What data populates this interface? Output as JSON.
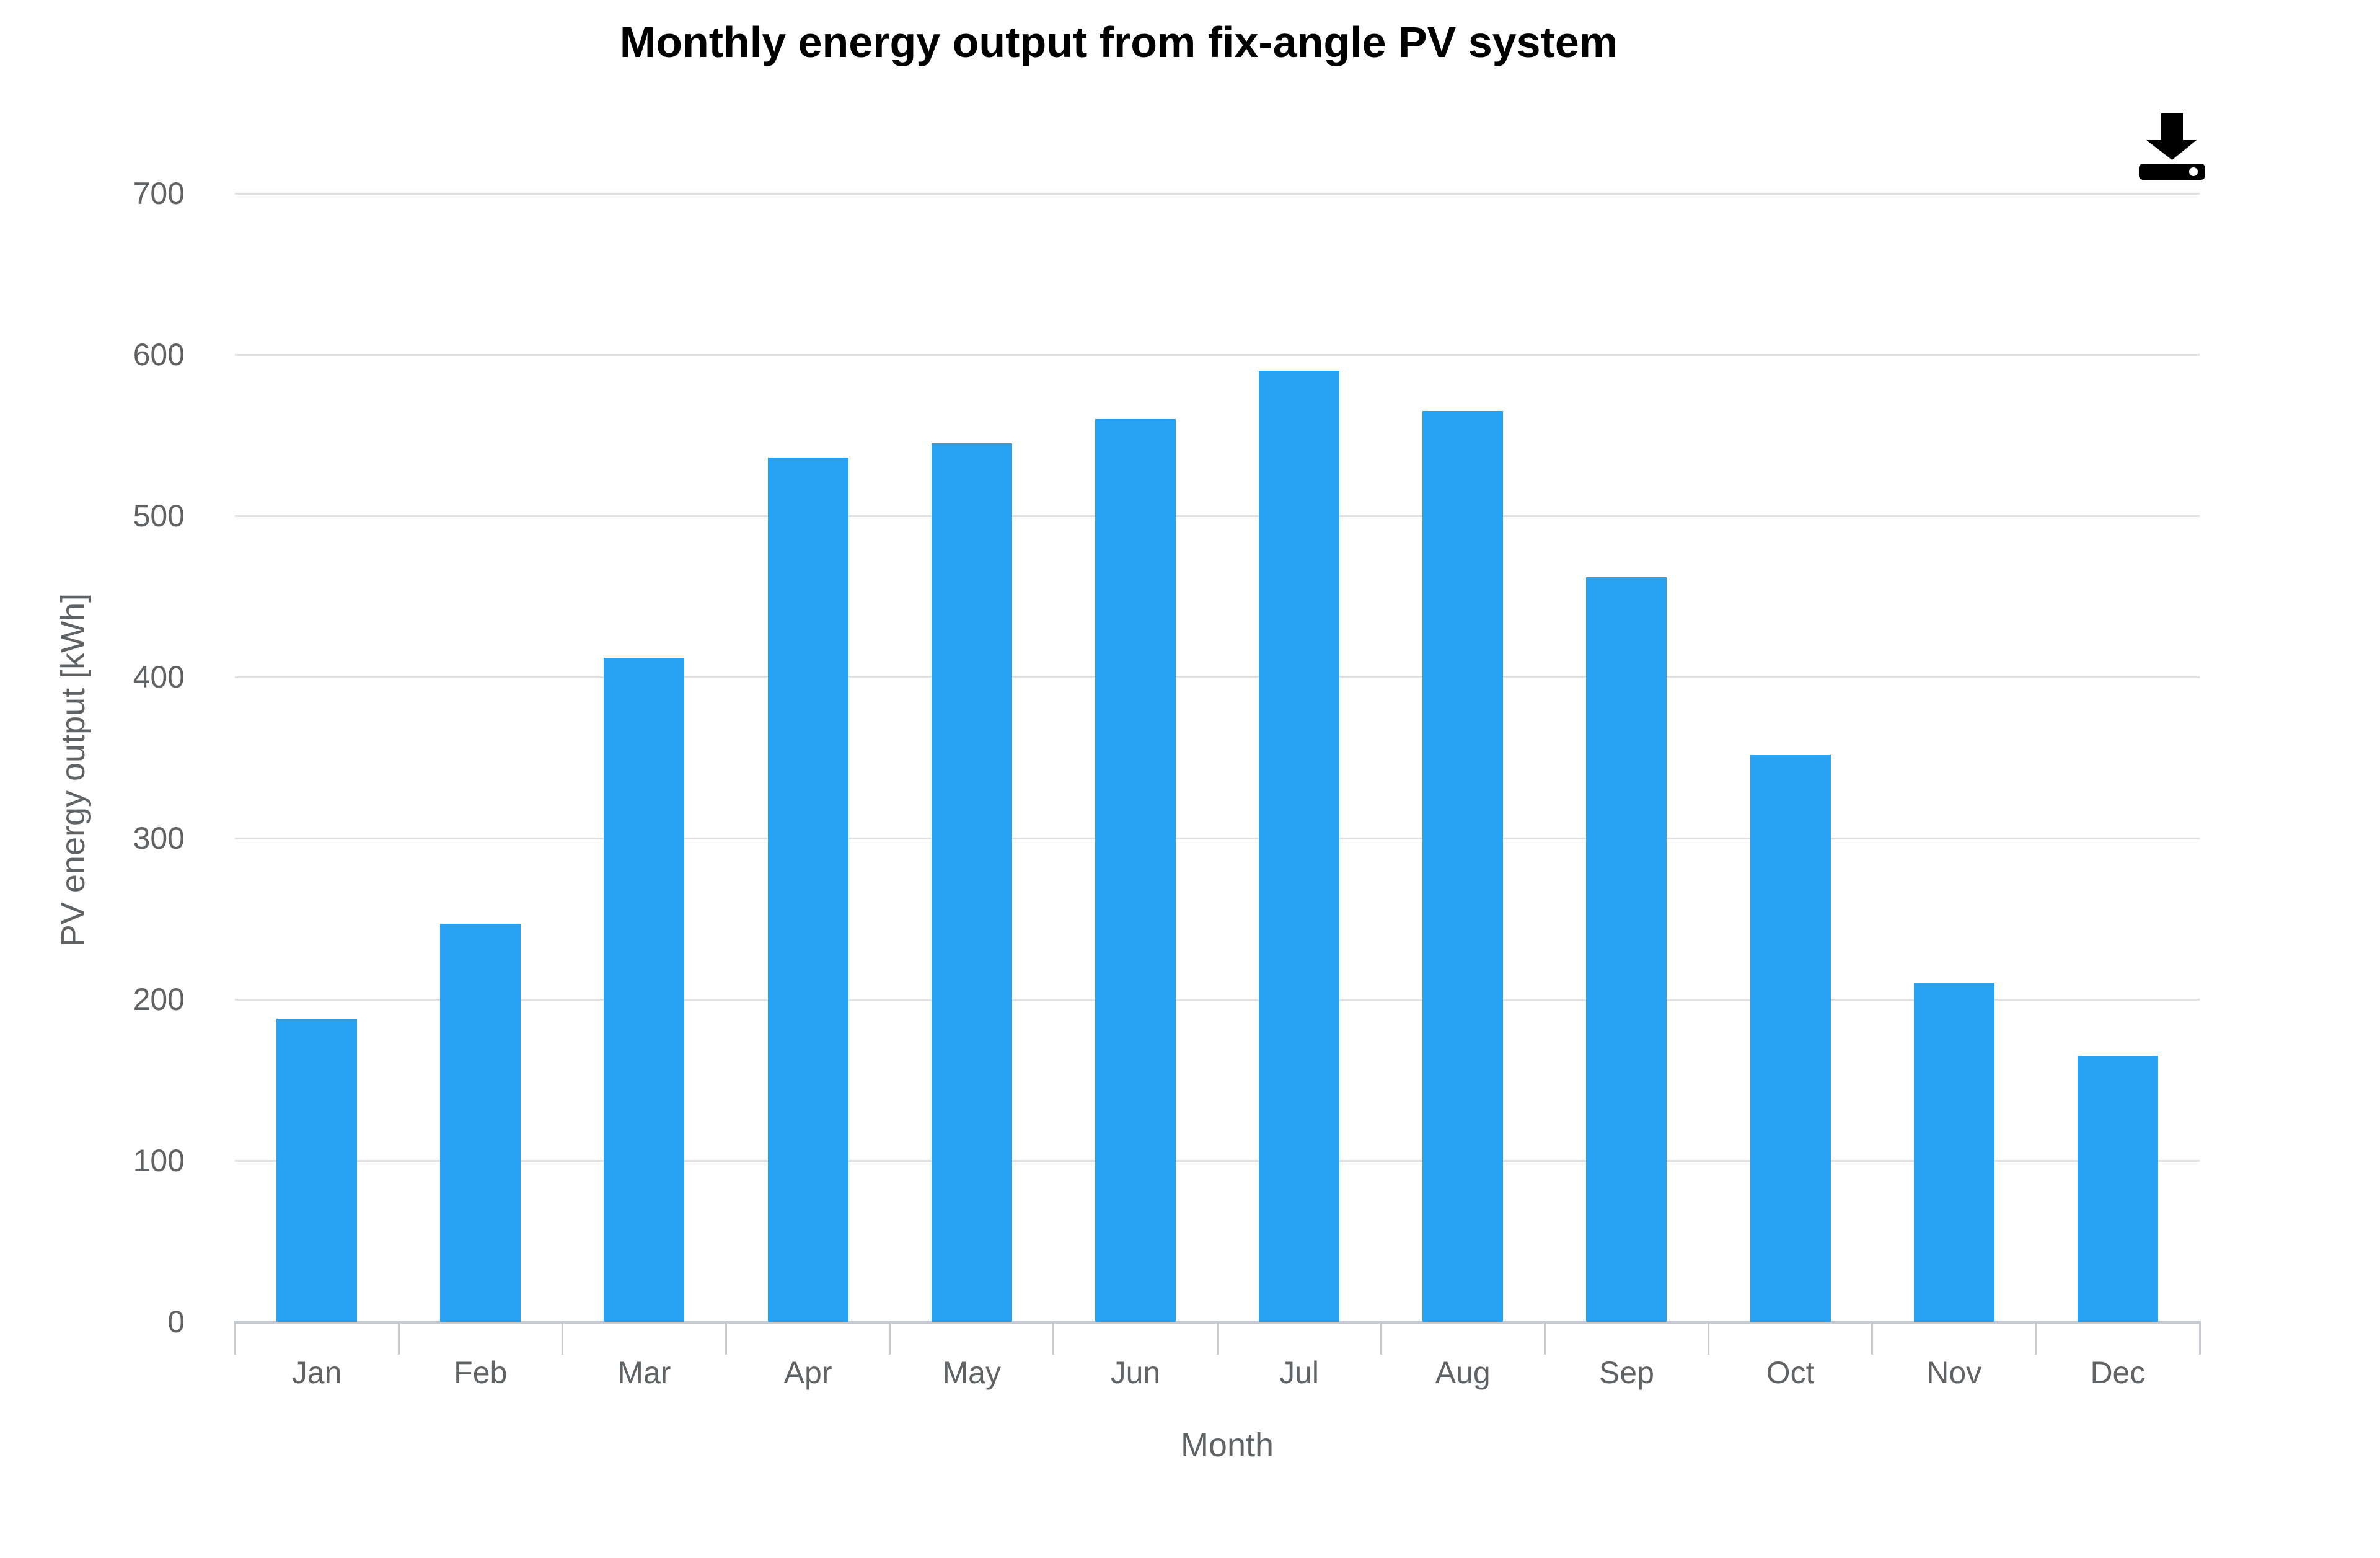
{
  "chart": {
    "title": "Monthly energy output from fix-angle PV system",
    "toolbar": {
      "download_icon": "download-icon"
    }
  },
  "chart_data": {
    "type": "bar",
    "title": "Monthly energy output from fix-angle PV system",
    "categories": [
      "Jan",
      "Feb",
      "Mar",
      "Apr",
      "May",
      "Jun",
      "Jul",
      "Aug",
      "Sep",
      "Oct",
      "Nov",
      "Dec"
    ],
    "values": [
      188,
      247,
      412,
      536,
      545,
      560,
      590,
      565,
      462,
      352,
      210,
      165
    ],
    "xlabel": "Month",
    "ylabel": "PV energy output [kWh]",
    "ylim": [
      0,
      700
    ],
    "yticks": [
      0,
      100,
      200,
      300,
      400,
      500,
      600,
      700
    ],
    "grid": true,
    "legend": false,
    "colors": {
      "bar": "#27a2f5",
      "grid": "#e0e0e0",
      "axis": "#c6cbd1",
      "label": "#606365",
      "title": "#000000",
      "icon": "#000000",
      "background": "#ffffff"
    }
  }
}
